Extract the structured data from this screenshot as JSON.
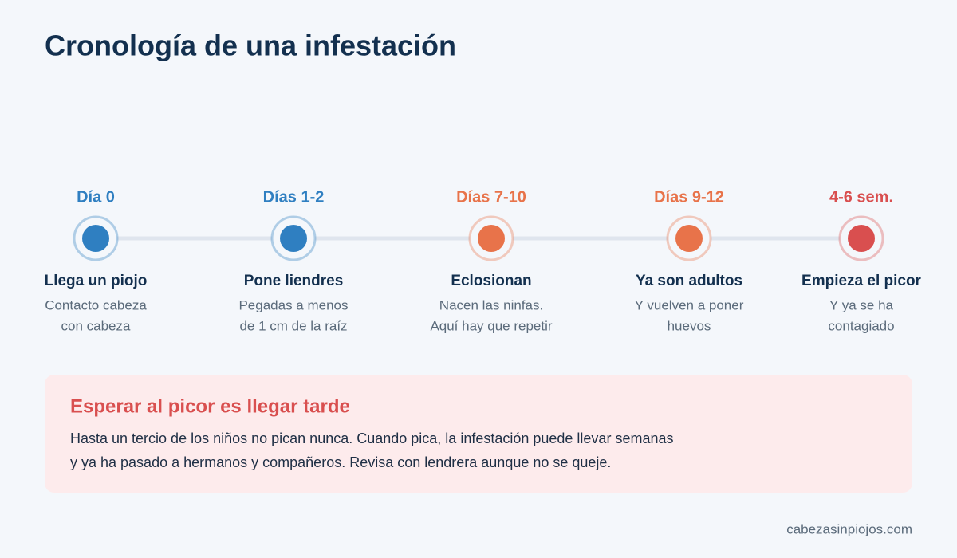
{
  "title": "Cronología de una infestación",
  "steps": [
    {
      "label": "Día 0",
      "color": "#2f7fc1",
      "title": "Llega un piojo",
      "description": [
        "Contacto cabeza",
        "con cabeza"
      ]
    },
    {
      "label": "Días 1-2",
      "color": "#2f7fc1",
      "title": "Pone liendres",
      "description": [
        "Pegadas a menos",
        "de 1 cm de la raíz"
      ]
    },
    {
      "label": "Días 7-10",
      "color": "#e8734a",
      "title": "Eclosionan",
      "description": [
        "Nacen las ninfas.",
        "Aquí hay que repetir"
      ]
    },
    {
      "label": "Días 9-12",
      "color": "#e8734a",
      "title": "Ya son adultos",
      "description": [
        "Y vuelven a poner",
        "huevos"
      ]
    },
    {
      "label": "4-6 sem.",
      "color": "#d94f4f",
      "title": "Empieza el picor",
      "description": [
        "Y ya se ha",
        "contagiado"
      ]
    }
  ],
  "callout": {
    "title": "Esperar al picor es llegar tarde",
    "body": [
      "Hasta un tercio de los niños no pican nunca. Cuando pica, la infestación puede llevar semanas",
      "y ya ha pasado a hermanos y compañeros. Revisa con lendrera aunque no se queje."
    ]
  },
  "footer": "cabezasinpiojos.com"
}
